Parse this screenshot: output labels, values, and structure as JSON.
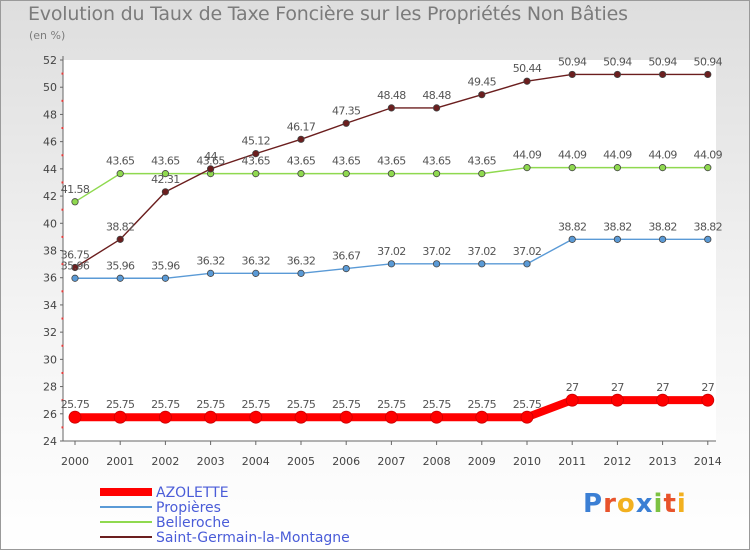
{
  "title": "Evolution du Taux de Taxe Foncière sur les Propriétés Non Bâties",
  "unit_label": "(en %)",
  "logo": {
    "letters": [
      "P",
      "r",
      "o",
      "x",
      "i",
      "t",
      "i"
    ],
    "colors": [
      "#3b7fd4",
      "#e8532b",
      "#f2b01f",
      "#3b7fd4",
      "#7cc242",
      "#e8532b",
      "#f2b01f"
    ]
  },
  "chart_data": {
    "type": "line",
    "title": "Evolution du Taux de Taxe Foncière sur les Propriétés Non Bâties",
    "ylabel": "(en %)",
    "xlabel": "",
    "ylim": [
      24,
      52
    ],
    "yticks": [
      24,
      26,
      28,
      30,
      32,
      34,
      36,
      38,
      40,
      42,
      44,
      46,
      48,
      50,
      52
    ],
    "grid": false,
    "legend_position": "bottom-left",
    "categories": [
      "2000",
      "2001",
      "2002",
      "2003",
      "2004",
      "2005",
      "2006",
      "2007",
      "2008",
      "2009",
      "2010",
      "2011",
      "2012",
      "2013",
      "2014"
    ],
    "series": [
      {
        "name": "Saint-Germain-la-Montagne",
        "color": "#6b1e1e",
        "values": [
          36.75,
          38.82,
          42.31,
          44,
          45.12,
          46.17,
          47.35,
          48.48,
          48.48,
          49.45,
          50.44,
          50.94,
          50.94,
          50.94,
          50.94
        ],
        "labels": [
          "36.75",
          "38.82",
          "42.31",
          "44",
          "45.12",
          "46.17",
          "47.35",
          "48.48",
          "48.48",
          "49.45",
          "50.44",
          "50.94",
          "50.94",
          "50.94",
          "50.94"
        ]
      },
      {
        "name": "Belleroche",
        "color": "#8fd94f",
        "values": [
          41.58,
          43.65,
          43.65,
          43.65,
          43.65,
          43.65,
          43.65,
          43.65,
          43.65,
          43.65,
          44.09,
          44.09,
          44.09,
          44.09,
          44.09
        ],
        "labels": [
          "41.58",
          "43.65",
          "43.65",
          "43.65",
          "43.65",
          "43.65",
          "43.65",
          "43.65",
          "43.65",
          "43.65",
          "44.09",
          "44.09",
          "44.09",
          "44.09",
          "44.09"
        ]
      },
      {
        "name": "Propières",
        "color": "#5a9ad6",
        "values": [
          35.96,
          35.96,
          35.96,
          36.32,
          36.32,
          36.32,
          36.67,
          37.02,
          37.02,
          37.02,
          37.02,
          38.82,
          38.82,
          38.82,
          38.82
        ],
        "labels": [
          "35.96",
          "35.96",
          "35.96",
          "36.32",
          "36.32",
          "36.32",
          "36.67",
          "37.02",
          "37.02",
          "37.02",
          "37.02",
          "38.82",
          "38.82",
          "38.82",
          "38.82"
        ]
      },
      {
        "name": "AZOLETTE",
        "color": "#ff0000",
        "values": [
          25.75,
          25.75,
          25.75,
          25.75,
          25.75,
          25.75,
          25.75,
          25.75,
          25.75,
          25.75,
          25.75,
          27,
          27,
          27,
          27
        ],
        "labels": [
          "25.75",
          "25.75",
          "25.75",
          "25.75",
          "25.75",
          "25.75",
          "25.75",
          "25.75",
          "25.75",
          "25.75",
          "25.75",
          "27",
          "27",
          "27",
          "27"
        ]
      }
    ],
    "legend_order": [
      "AZOLETTE",
      "Propières",
      "Belleroche",
      "Saint-Germain-la-Montagne"
    ]
  }
}
